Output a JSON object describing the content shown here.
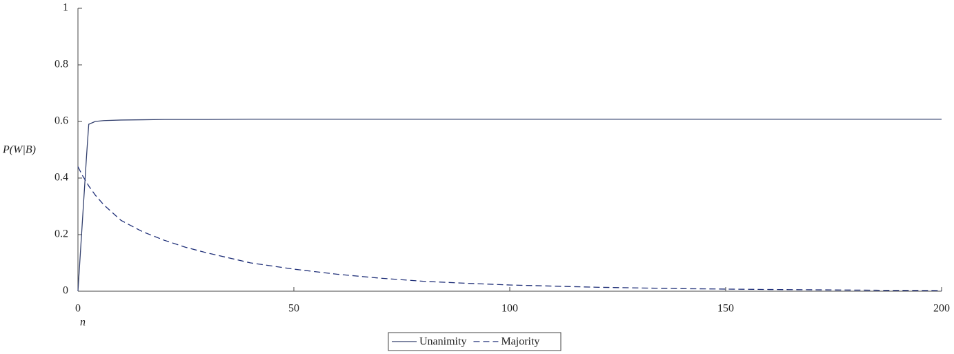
{
  "chart_data": {
    "type": "line",
    "xlabel": "n",
    "ylabel": "P(W|B)",
    "x": [
      0,
      1,
      2,
      2.5,
      4,
      6,
      10,
      15,
      20,
      25,
      30,
      40,
      50,
      60,
      70,
      80,
      90,
      100,
      120,
      140,
      160,
      180,
      200
    ],
    "series": [
      {
        "name": "Unanimity",
        "color": "#34416e",
        "dash": false,
        "values": [
          0,
          0.24,
          0.48,
          0.59,
          0.6,
          0.603,
          0.605,
          0.606,
          0.607,
          0.607,
          0.607,
          0.608,
          0.608,
          0.608,
          0.608,
          0.608,
          0.608,
          0.608,
          0.608,
          0.608,
          0.608,
          0.608,
          0.608
        ]
      },
      {
        "name": "Majority",
        "color": "#1f2f78",
        "dash": true,
        "values": [
          0.44,
          0.41,
          0.385,
          0.372,
          0.34,
          0.305,
          0.25,
          0.21,
          0.18,
          0.155,
          0.135,
          0.1,
          0.078,
          0.06,
          0.046,
          0.035,
          0.028,
          0.022,
          0.014,
          0.009,
          0.006,
          0.004,
          0.002
        ]
      }
    ],
    "xlim": [
      0,
      200
    ],
    "xticks": [
      0,
      50,
      100,
      150,
      200
    ],
    "ylim": [
      0,
      1
    ],
    "yticks": [
      0,
      0.2,
      0.4,
      0.6,
      0.8,
      1
    ],
    "legend": "bottom"
  }
}
